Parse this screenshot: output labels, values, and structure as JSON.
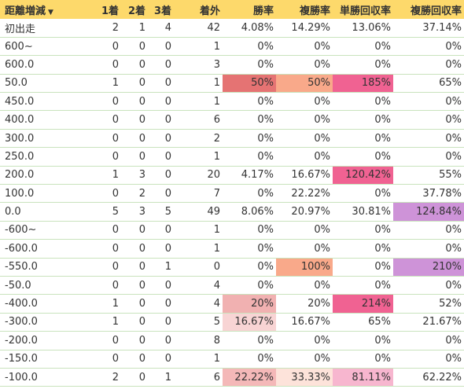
{
  "table": {
    "headers": [
      "距離増減",
      "1着",
      "2着",
      "3着",
      "着外",
      "勝率",
      "複勝率",
      "単勝回収率",
      "複勝回収率"
    ],
    "sort_indicator": "▼",
    "rows": [
      [
        "初出走",
        "2",
        "1",
        "4",
        "42",
        "4.08%",
        "14.29%",
        "13.06%",
        "37.14%"
      ],
      [
        "600~",
        "0",
        "0",
        "0",
        "1",
        "0%",
        "0%",
        "0%",
        "0%"
      ],
      [
        "600.0",
        "0",
        "0",
        "0",
        "3",
        "0%",
        "0%",
        "0%",
        "0%"
      ],
      [
        "50.0",
        "1",
        "0",
        "0",
        "1",
        "50%",
        "50%",
        "185%",
        "65%"
      ],
      [
        "450.0",
        "0",
        "0",
        "0",
        "1",
        "0%",
        "0%",
        "0%",
        "0%"
      ],
      [
        "400.0",
        "0",
        "0",
        "0",
        "6",
        "0%",
        "0%",
        "0%",
        "0%"
      ],
      [
        "300.0",
        "0",
        "0",
        "0",
        "2",
        "0%",
        "0%",
        "0%",
        "0%"
      ],
      [
        "250.0",
        "0",
        "0",
        "0",
        "1",
        "0%",
        "0%",
        "0%",
        "0%"
      ],
      [
        "200.0",
        "1",
        "3",
        "0",
        "20",
        "4.17%",
        "16.67%",
        "120.42%",
        "55%"
      ],
      [
        "100.0",
        "0",
        "2",
        "0",
        "7",
        "0%",
        "22.22%",
        "0%",
        "37.78%"
      ],
      [
        "0.0",
        "5",
        "3",
        "5",
        "49",
        "8.06%",
        "20.97%",
        "30.81%",
        "124.84%"
      ],
      [
        "-600~",
        "0",
        "0",
        "0",
        "1",
        "0%",
        "0%",
        "0%",
        "0%"
      ],
      [
        "-600.0",
        "0",
        "0",
        "0",
        "1",
        "0%",
        "0%",
        "0%",
        "0%"
      ],
      [
        "-550.0",
        "0",
        "0",
        "1",
        "0",
        "0%",
        "100%",
        "0%",
        "210%"
      ],
      [
        "-50.0",
        "0",
        "0",
        "0",
        "4",
        "0%",
        "0%",
        "0%",
        "0%"
      ],
      [
        "-400.0",
        "1",
        "0",
        "0",
        "4",
        "20%",
        "20%",
        "214%",
        "52%"
      ],
      [
        "-300.0",
        "1",
        "0",
        "0",
        "5",
        "16.67%",
        "16.67%",
        "65%",
        "21.67%"
      ],
      [
        "-200.0",
        "0",
        "0",
        "0",
        "8",
        "0%",
        "0%",
        "0%",
        "0%"
      ],
      [
        "-150.0",
        "0",
        "0",
        "0",
        "1",
        "0%",
        "0%",
        "0%",
        "0%"
      ],
      [
        "-100.0",
        "2",
        "0",
        "1",
        "6",
        "22.22%",
        "33.33%",
        "81.11%",
        "62.22%"
      ]
    ],
    "highlights": [
      {
        "row": 3,
        "col": 5,
        "color": "#e57373"
      },
      {
        "row": 3,
        "col": 6,
        "color": "#f9a98a"
      },
      {
        "row": 3,
        "col": 7,
        "color": "#f06292"
      },
      {
        "row": 8,
        "col": 7,
        "color": "#f06292"
      },
      {
        "row": 10,
        "col": 8,
        "color": "#ce93d8"
      },
      {
        "row": 13,
        "col": 6,
        "color": "#f9a98a"
      },
      {
        "row": 13,
        "col": 8,
        "color": "#ce93d8"
      },
      {
        "row": 15,
        "col": 5,
        "color": "#f1b1b1"
      },
      {
        "row": 15,
        "col": 7,
        "color": "#f06292"
      },
      {
        "row": 16,
        "col": 5,
        "color": "#f8d4d4"
      },
      {
        "row": 19,
        "col": 5,
        "color": "#f4b8b8"
      },
      {
        "row": 19,
        "col": 6,
        "color": "#fde3da"
      },
      {
        "row": 19,
        "col": 7,
        "color": "#f7b6cf"
      }
    ],
    "colors": {
      "header_bg": "#fdd96b",
      "row_border": "#c9e3bd",
      "text": "#333333"
    }
  }
}
